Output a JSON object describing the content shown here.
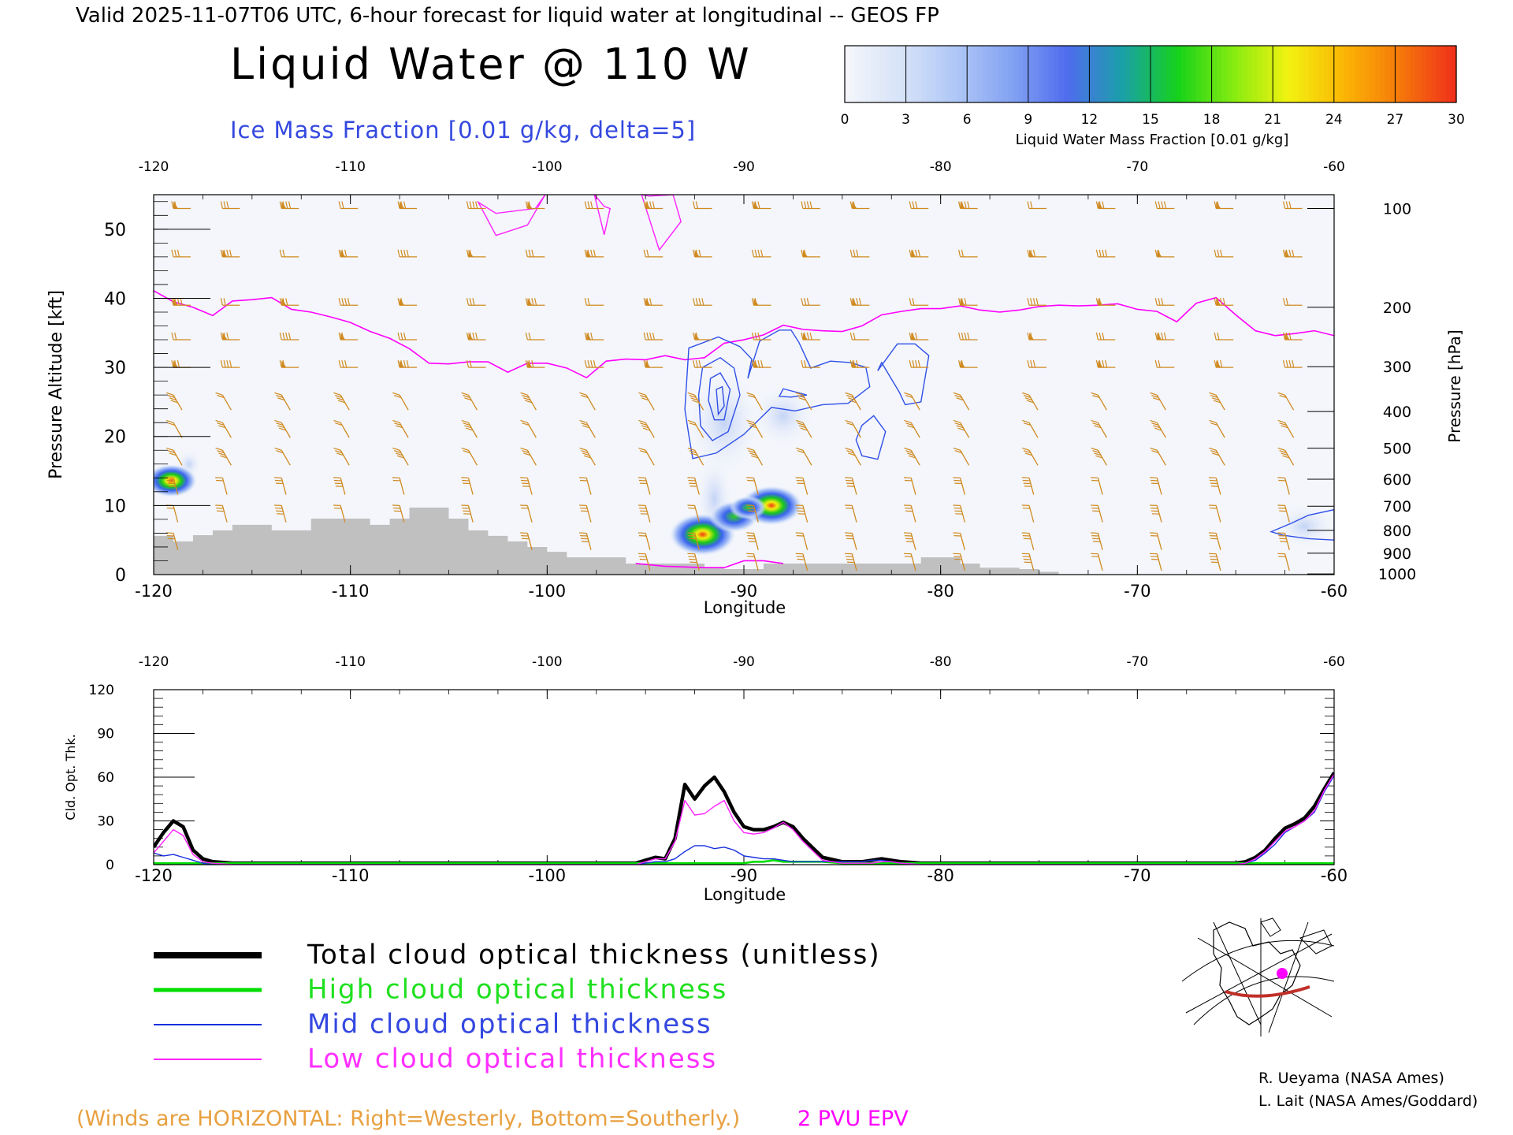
{
  "header": {
    "valid_line": "Valid 2025-11-07T06 UTC, 6-hour forecast for liquid water at longitudinal -- GEOS FP",
    "title": "Liquid Water @ 110 W",
    "subtitle": "Ice Mass Fraction [0.01 g/kg, delta=5]"
  },
  "colorbar": {
    "label": "Liquid Water Mass Fraction [0.01 g/kg]",
    "ticks": [
      "0",
      "3",
      "6",
      "9",
      "12",
      "15",
      "18",
      "21",
      "24",
      "27",
      "30"
    ],
    "colors": [
      "#f4f6fb",
      "#d6e2f8",
      "#aec6f6",
      "#82a2f2",
      "#4f6cee",
      "#1aa0a8",
      "#16d21a",
      "#86ec10",
      "#f2f210",
      "#fbb605",
      "#f57a0a",
      "#f0321a"
    ]
  },
  "chart_data": [
    {
      "type": "heatmap",
      "title": "Liquid Water @ 110 W",
      "xlabel": "Longitude",
      "ylabel": "Pressure Altitude [kft]",
      "y2label": "Pressure [hPa]",
      "xlim": [
        -120,
        -60
      ],
      "ylim": [
        0,
        55
      ],
      "x_ticks": [
        "-120",
        "-110",
        "-100",
        "-90",
        "-80",
        "-70",
        "-60"
      ],
      "y_ticks": [
        "0",
        "10",
        "20",
        "30",
        "40",
        "50"
      ],
      "pressure_ticks": [
        {
          "label": "100",
          "alt_kft": 53
        },
        {
          "label": "200",
          "alt_kft": 38.7
        },
        {
          "label": "300",
          "alt_kft": 30.1
        },
        {
          "label": "400",
          "alt_kft": 23.6
        },
        {
          "label": "500",
          "alt_kft": 18.3
        },
        {
          "label": "600",
          "alt_kft": 13.8
        },
        {
          "label": "700",
          "alt_kft": 9.9
        },
        {
          "label": "800",
          "alt_kft": 6.4
        },
        {
          "label": "900",
          "alt_kft": 3.1
        },
        {
          "label": "1000",
          "alt_kft": 0.1
        }
      ],
      "liquid_water_blobs": [
        {
          "lon": -119.1,
          "alt_kft": 13.6,
          "value": 15
        },
        {
          "lon": -92.1,
          "alt_kft": 5.8,
          "value": 22
        },
        {
          "lon": -90.5,
          "alt_kft": 8.4,
          "value": 14
        },
        {
          "lon": -88.6,
          "alt_kft": 10.0,
          "value": 20
        },
        {
          "lon": -89.8,
          "alt_kft": 9.7,
          "value": 8
        }
      ],
      "pv2_tropopause": {
        "color": "#ff00ff",
        "lon": [
          -120,
          -119,
          -118,
          -117,
          -116,
          -115,
          -114,
          -113,
          -112,
          -111,
          -110,
          -109,
          -108,
          -107,
          -106,
          -105,
          -104,
          -103,
          -102,
          -101,
          -100,
          -99,
          -98,
          -97,
          -96,
          -95,
          -94,
          -93,
          -92,
          -91,
          -90,
          -89,
          -88,
          -87,
          -86,
          -85,
          -84,
          -83,
          -82,
          -81,
          -80,
          -79,
          -78,
          -77,
          -76,
          -75,
          -74,
          -73,
          -72,
          -71,
          -70,
          -69,
          -68,
          -67,
          -66,
          -65,
          -64,
          -63,
          -62,
          -61,
          -60
        ],
        "alt_kft": [
          41.1,
          39.5,
          38.7,
          37.5,
          39.6,
          39.8,
          40.1,
          38.4,
          38.0,
          37.3,
          36.5,
          35.2,
          34.2,
          32.7,
          30.6,
          30.5,
          30.8,
          30.8,
          29.3,
          30.6,
          30.6,
          29.9,
          28.5,
          30.9,
          31.2,
          31.1,
          31.7,
          31.1,
          31.4,
          33.5,
          34.0,
          34.7,
          36.1,
          35.5,
          35.3,
          35.2,
          36.0,
          37.6,
          38.1,
          38.5,
          38.5,
          38.9,
          38.3,
          38.0,
          38.3,
          38.8,
          39.0,
          38.9,
          39.0,
          39.2,
          38.4,
          38.1,
          36.6,
          39.3,
          40.1,
          37.6,
          35.3,
          34.6,
          34.9,
          35.3,
          34.6
        ]
      },
      "ice_contours": [
        {
          "lon": [
            -92.8,
            -91.3,
            -90.2,
            -89.6,
            -89.8,
            -89.2,
            -88.2,
            -87.6,
            -87.2,
            -86.6,
            -85.6,
            -84.6,
            -83.8,
            -83.6,
            -84.7,
            -86.0,
            -87.4,
            -88.6,
            -90.0,
            -91.4,
            -92.6,
            -92.8,
            -93.0,
            -92.8
          ],
          "alt_kft": [
            32.8,
            34.4,
            33.0,
            31.2,
            28.4,
            33.8,
            35.4,
            35.4,
            33.6,
            29.9,
            30.9,
            30.7,
            30.0,
            27.2,
            24.8,
            24.6,
            23.7,
            24.2,
            20.3,
            17.6,
            16.8,
            20.2,
            23.9,
            32.8
          ]
        },
        {
          "lon": [
            -92.1,
            -91.2,
            -90.5,
            -90.2,
            -90.8,
            -91.6,
            -92.2,
            -92.3,
            -92.1
          ],
          "alt_kft": [
            30.0,
            31.4,
            29.9,
            26.0,
            20.7,
            19.4,
            21.5,
            26.0,
            30.0
          ]
        },
        {
          "lon": [
            -91.7,
            -91.2,
            -90.7,
            -91.0,
            -91.5,
            -91.8,
            -91.7
          ],
          "alt_kft": [
            28.4,
            29.2,
            26.8,
            22.4,
            22.4,
            25.2,
            28.4
          ]
        },
        {
          "lon": [
            -91.4,
            -91.1,
            -91.0,
            -91.3,
            -91.4
          ],
          "alt_kft": [
            26.8,
            27.2,
            24.4,
            23.2,
            26.8
          ]
        },
        {
          "lon": [
            -88.0,
            -86.8,
            -87.6,
            -88.2,
            -88.0
          ],
          "alt_kft": [
            26.9,
            26.0,
            25.7,
            25.8,
            26.9
          ]
        },
        {
          "lon": [
            -83.2,
            -82.2,
            -81.3,
            -80.6,
            -81.0,
            -81.8,
            -82.1,
            -83.0,
            -83.2
          ],
          "alt_kft": [
            29.5,
            33.4,
            33.4,
            31.7,
            25.0,
            24.6,
            26.4,
            30.7,
            29.5
          ]
        },
        {
          "lon": [
            -84.0,
            -83.4,
            -82.8,
            -83.2,
            -84.0,
            -84.3,
            -84.0
          ],
          "alt_kft": [
            21.6,
            23.0,
            20.7,
            16.7,
            17.2,
            19.5,
            21.6
          ]
        },
        {
          "lon": [
            -63.2,
            -62.2,
            -61.3,
            -60.0,
            -60.0,
            -61.3,
            -62.6,
            -63.2
          ],
          "alt_kft": [
            6.2,
            7.4,
            8.6,
            9.4,
            5.0,
            5.2,
            5.7,
            6.2
          ]
        }
      ],
      "upper_ice_contours": [
        {
          "lon": [
            -103.5,
            -102.6,
            -100.6,
            -100.1,
            -101.0,
            -102.6,
            -103.5
          ],
          "alt_kft": [
            53.9,
            52.3,
            53.0,
            55.0,
            50.6,
            49.1,
            53.9
          ]
        },
        {
          "lon": [
            -97.6,
            -97.1,
            -96.8,
            -97.1,
            -97.6
          ],
          "alt_kft": [
            55.0,
            53.3,
            53.0,
            49.2,
            55.0
          ]
        },
        {
          "lon": [
            -95.2,
            -94.8,
            -93.6,
            -93.2,
            -94.3,
            -95.2
          ],
          "alt_kft": [
            55.0,
            54.8,
            55.0,
            51.1,
            47.0,
            55.0
          ]
        }
      ],
      "terrain": {
        "color": "#c0c0c0",
        "lon_edges": [
          -120,
          -119,
          -118,
          -117,
          -116,
          -115,
          -114,
          -113,
          -112,
          -111,
          -110,
          -109,
          -108,
          -107,
          -106,
          -105,
          -104,
          -103,
          -102,
          -101,
          -100,
          -99,
          -98,
          -97,
          -96,
          -95,
          -94,
          -93,
          -92,
          -91,
          -90,
          -89,
          -88,
          -87,
          -86,
          -85,
          -84,
          -83,
          -82,
          -81,
          -80,
          -79,
          -78,
          -77,
          -76,
          -75,
          -74,
          -73
        ],
        "alt_kft": [
          5.6,
          4.8,
          5.7,
          6.4,
          7.2,
          7.2,
          6.4,
          6.4,
          8.1,
          8.1,
          8.1,
          7.2,
          8.1,
          9.7,
          9.7,
          8.1,
          6.4,
          5.6,
          4.8,
          4.0,
          3.3,
          2.5,
          2.5,
          2.5,
          1.6,
          1.6,
          1.6,
          1.6,
          1.0,
          0.8,
          0.8,
          1.6,
          1.6,
          1.6,
          1.6,
          1.6,
          1.6,
          1.6,
          1.6,
          2.5,
          2.5,
          1.6,
          1.0,
          1.0,
          0.8,
          0.4,
          0
        ]
      },
      "wind_barbs": {
        "color": "#d08a20",
        "columns_lon": [
          -119,
          -116.5,
          -113.5,
          -110.5,
          -107.5,
          -104,
          -101,
          -98,
          -95,
          -92.5,
          -89.5,
          -87,
          -84.5,
          -81.5,
          -79,
          -75.5,
          -72,
          -69,
          -66,
          -62.5
        ],
        "levels_kft": [
          53,
          46,
          39,
          34,
          30,
          26,
          22,
          18,
          14,
          10,
          6,
          3
        ]
      },
      "annotations": [
        "(Winds are HORIZONTAL: Right=Westerly, Bottom=Southerly.)",
        "2 PVU EPV"
      ]
    },
    {
      "type": "line",
      "xlabel": "Longitude",
      "ylabel": "Cld. Opt. Thk.",
      "xlim": [
        -120,
        -60
      ],
      "ylim": [
        0,
        120
      ],
      "x_ticks": [
        "-120",
        "-110",
        "-100",
        "-90",
        "-80",
        "-70",
        "-60"
      ],
      "y_ticks": [
        "0",
        "30",
        "60",
        "90",
        "120"
      ],
      "x": [
        -120,
        -119.5,
        -119,
        -118.5,
        -118,
        -117.5,
        -117,
        -116,
        -110,
        -100,
        -95.5,
        -95,
        -94.5,
        -94,
        -93.5,
        -93,
        -92.5,
        -92,
        -91.5,
        -91,
        -90.5,
        -90,
        -89.5,
        -89,
        -88.5,
        -88,
        -87.5,
        -87,
        -86,
        -85,
        -84,
        -83.5,
        -83,
        -82.5,
        -82,
        -81,
        -80,
        -70,
        -65,
        -64.5,
        -64,
        -63.5,
        -63,
        -62.5,
        -62,
        -61.5,
        -61,
        -60.5,
        -60
      ],
      "series": [
        {
          "name": "Total cloud optical thickness (unitless)",
          "color": "#000000",
          "width": 4.5,
          "values": [
            12,
            22,
            30,
            26,
            10,
            4,
            2,
            1,
            1,
            1,
            1,
            3,
            5,
            4,
            18,
            55,
            45,
            54,
            60,
            50,
            36,
            26,
            24,
            24,
            26,
            29,
            26,
            18,
            5,
            2,
            2,
            3,
            4,
            3,
            2,
            1,
            1,
            1,
            1,
            2,
            5,
            10,
            18,
            25,
            28,
            32,
            40,
            52,
            63
          ]
        },
        {
          "name": "High cloud optical thickness",
          "color": "#00dd00",
          "width": 2.6,
          "values": [
            1,
            1,
            1,
            1,
            1,
            1,
            1,
            1,
            1,
            1,
            1,
            1,
            1,
            1,
            1,
            1,
            1,
            1,
            1,
            1,
            1,
            1,
            2,
            2,
            3,
            2,
            2,
            2,
            2,
            1,
            1,
            1,
            1,
            1,
            1,
            1,
            1,
            1,
            1,
            1,
            1,
            1,
            1,
            1,
            1,
            1,
            1,
            1,
            1
          ]
        },
        {
          "name": "Mid cloud optical thickness",
          "color": "#1830e0",
          "width": 1.4,
          "values": [
            8,
            6,
            7,
            5,
            3,
            1,
            0,
            0,
            0,
            0,
            0,
            1,
            2,
            2,
            4,
            9,
            13,
            13,
            11,
            12,
            10,
            6,
            5,
            4,
            4,
            3,
            2,
            2,
            2,
            2,
            2,
            3,
            3,
            2,
            1,
            0,
            0,
            0,
            0,
            1,
            3,
            8,
            14,
            22,
            26,
            30,
            36,
            50,
            61
          ]
        },
        {
          "name": "Low cloud optical thickness",
          "color": "#ff20ff",
          "width": 1.4,
          "values": [
            8,
            16,
            24,
            20,
            7,
            2,
            1,
            0,
            0,
            0,
            0,
            2,
            4,
            4,
            16,
            44,
            34,
            35,
            40,
            44,
            30,
            22,
            21,
            22,
            25,
            29,
            24,
            16,
            3,
            1,
            1,
            1,
            2,
            2,
            1,
            0,
            0,
            0,
            0,
            1,
            4,
            9,
            16,
            23,
            26,
            30,
            37,
            51,
            62
          ]
        }
      ]
    }
  ],
  "legend": {
    "total": "Total cloud optical thickness (unitless)",
    "high": "High cloud optical thickness",
    "mid": "Mid cloud optical thickness",
    "low": "Low cloud optical thickness"
  },
  "colors": {
    "winds_note": "#e8a040",
    "epv": "#ff00ff",
    "ice": "#3050e8",
    "barb": "#d08a20"
  },
  "footer": {
    "winds_note": "(Winds are HORIZONTAL: Right=Westerly, Bottom=Southerly.)",
    "epv_label": "2 PVU EPV",
    "credit1": "R. Ueyama (NASA Ames)",
    "credit2": "L. Lait (NASA Ames/Goddard)"
  },
  "inset_map": {
    "icon": "north-america-polar-map-icon"
  }
}
